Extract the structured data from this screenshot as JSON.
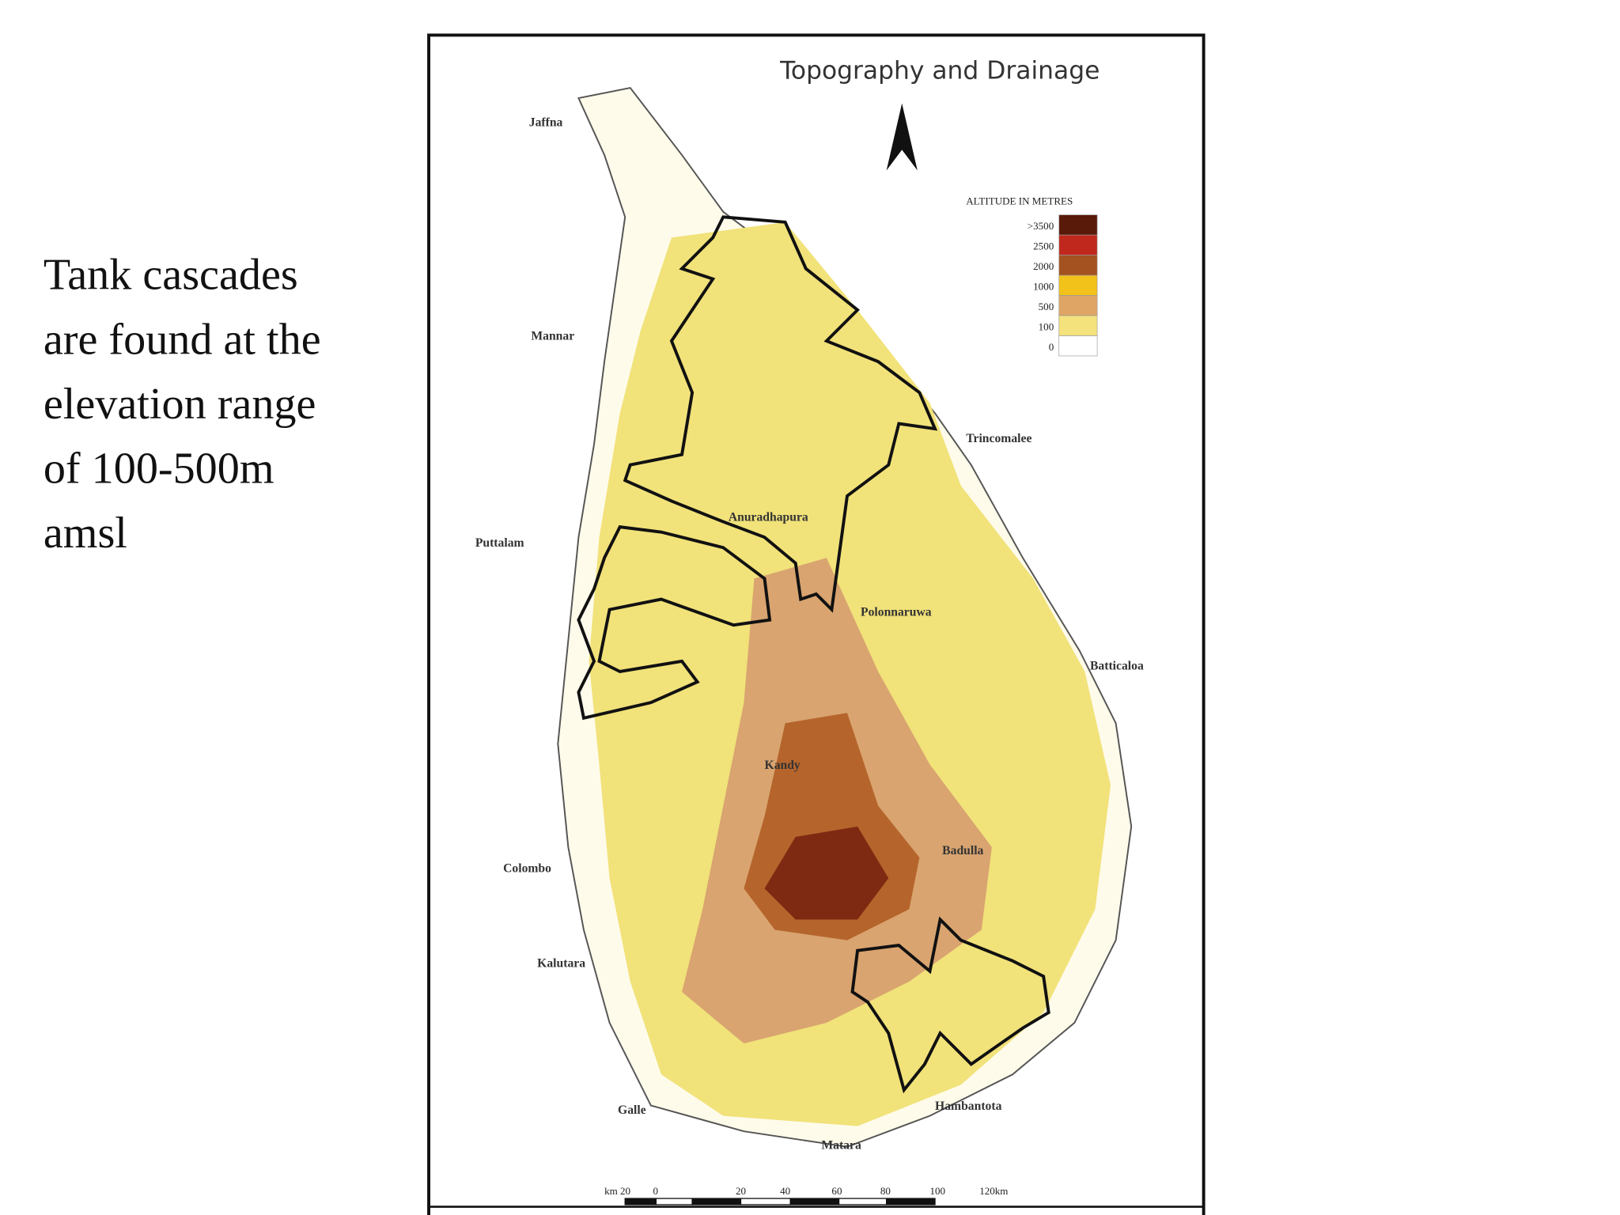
{
  "slide_text": [
    "Tank cascades",
    "are found at the",
    "elevation range",
    "of 100-500m",
    "amsl"
  ],
  "map": {
    "title": "Topography and Drainage",
    "legend": {
      "title": "ALTITUDE IN METRES",
      "labels": [
        ">3500",
        "2500",
        "2000",
        "1000",
        "500",
        "100",
        "0"
      ]
    },
    "places": [
      "Jaffna",
      "Mannar",
      "Trincomalee",
      "Anuradhapura",
      "Puttalam",
      "Polonnaruwa",
      "Batticaloa",
      "Kandy",
      "Badulla",
      "Colombo",
      "Kalutara",
      "Galle",
      "Hambantota",
      "Matara"
    ],
    "scale_labels": [
      "km 20",
      "0",
      "20",
      "40",
      "60",
      "80",
      "100",
      "120km"
    ]
  }
}
